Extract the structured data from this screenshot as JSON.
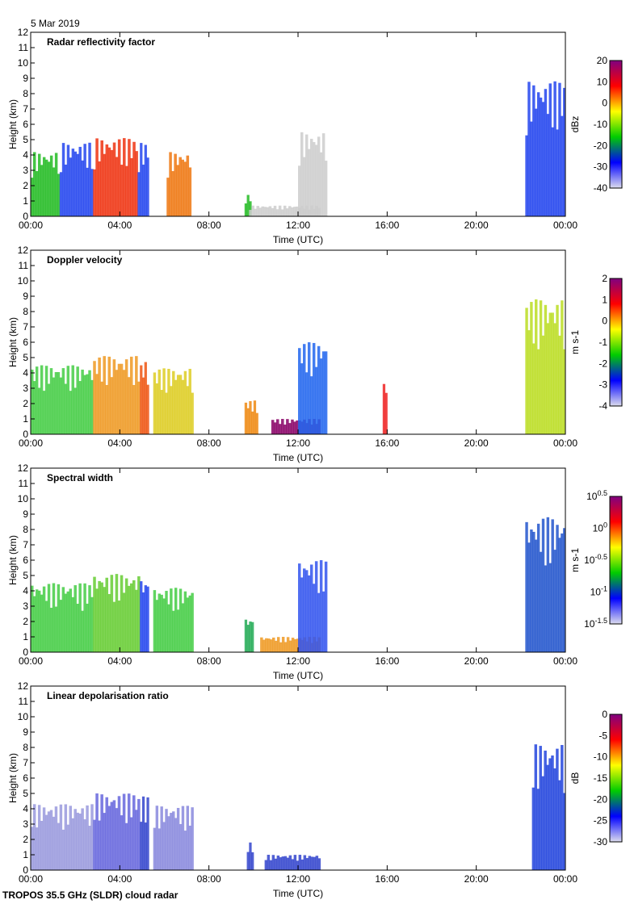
{
  "date": "5 Mar 2019",
  "footer": "TROPOS 35.5 GHz (SLDR) cloud radar",
  "chart_data": [
    {
      "type": "heatmap",
      "title": "Radar reflectivity factor",
      "xlabel": "Time (UTC)",
      "ylabel": "Height (km)",
      "xticks": [
        "00:00",
        "04:00",
        "08:00",
        "12:00",
        "16:00",
        "20:00",
        "00:00"
      ],
      "xlim": [
        0,
        24
      ],
      "ylim": [
        0,
        12
      ],
      "yticks": [
        0,
        1,
        2,
        3,
        4,
        5,
        6,
        7,
        8,
        9,
        10,
        11,
        12
      ],
      "colorbar": {
        "label": "dBz",
        "ticks": [
          "20",
          "10",
          "0",
          "-10",
          "-20",
          "-30",
          "-40"
        ],
        "colors": [
          "#ddddee",
          "#0000ff",
          "#00cc00",
          "#ffff00",
          "#ff0000",
          "#800080"
        ]
      },
      "echoes": [
        [
          0,
          1.3,
          4.2,
          "#22bb22"
        ],
        [
          1.3,
          2.8,
          4.8,
          "#2244ee"
        ],
        [
          2.8,
          4.8,
          5.1,
          "#ee3311"
        ],
        [
          4.8,
          5.3,
          4.8,
          "#2244ee"
        ],
        [
          6.1,
          7.2,
          4.2,
          "#ee7711"
        ],
        [
          9.6,
          9.9,
          1.4,
          "#22bb22"
        ],
        [
          9.8,
          13,
          0.7,
          "#cccccc"
        ],
        [
          12,
          13.3,
          5.5,
          "#cccccc"
        ],
        [
          22.2,
          24,
          8.8,
          "#2244ee"
        ]
      ]
    },
    {
      "type": "heatmap",
      "title": "Doppler velocity",
      "xlabel": "Time (UTC)",
      "ylabel": "Height (km)",
      "xticks": [
        "00:00",
        "04:00",
        "08:00",
        "12:00",
        "16:00",
        "20:00",
        "00:00"
      ],
      "xlim": [
        0,
        24
      ],
      "ylim": [
        0,
        12
      ],
      "yticks": [
        0,
        1,
        2,
        3,
        4,
        5,
        6,
        7,
        8,
        9,
        10,
        11,
        12
      ],
      "colorbar": {
        "label": "m s-1",
        "ticks": [
          "2",
          "1",
          "0",
          "-1",
          "-2",
          "-3",
          "-4"
        ],
        "colors": [
          "#ddddee",
          "#0000ff",
          "#00cc00",
          "#ffff00",
          "#ff0000",
          "#800080"
        ]
      },
      "echoes": [
        [
          0,
          2.8,
          4.5,
          "#44cc44"
        ],
        [
          2.8,
          4.9,
          5.1,
          "#ee9922"
        ],
        [
          4.9,
          5.3,
          4.8,
          "#ee5511"
        ],
        [
          5.5,
          7.3,
          4.3,
          "#ddcc22"
        ],
        [
          9.6,
          10.2,
          2.2,
          "#ee8811"
        ],
        [
          10.8,
          13,
          1.0,
          "#880066"
        ],
        [
          12,
          13.3,
          6,
          "#2266ee"
        ],
        [
          15.8,
          16,
          3.5,
          "#ee2222"
        ],
        [
          22.2,
          24,
          8.8,
          "#bbdd22"
        ]
      ]
    },
    {
      "type": "heatmap",
      "title": "Spectral width",
      "xlabel": "Time (UTC)",
      "ylabel": "Height (km)",
      "xticks": [
        "00:00",
        "04:00",
        "08:00",
        "12:00",
        "16:00",
        "20:00",
        "00:00"
      ],
      "xlim": [
        0,
        24
      ],
      "ylim": [
        0,
        12
      ],
      "yticks": [
        0,
        1,
        2,
        3,
        4,
        5,
        6,
        7,
        8,
        9,
        10,
        11,
        12
      ],
      "colorbar": {
        "label": "m s-1",
        "ticks": [
          "10^0.5",
          "10^0",
          "10^-0.5",
          "10^-1",
          "10^-1.5"
        ],
        "colors": [
          "#ddddee",
          "#0000ff",
          "#00cc00",
          "#ffff00",
          "#ff0000",
          "#800080"
        ]
      },
      "echoes": [
        [
          0,
          2.8,
          4.5,
          "#44cc44"
        ],
        [
          2.8,
          4.9,
          5.1,
          "#66cc33"
        ],
        [
          4.9,
          5.3,
          4.8,
          "#2244ee"
        ],
        [
          5.5,
          7.3,
          4.2,
          "#44cc44"
        ],
        [
          9.6,
          10,
          2.2,
          "#22aa55"
        ],
        [
          10.3,
          13,
          1.0,
          "#ee9922"
        ],
        [
          12,
          13.3,
          6,
          "#3355ee"
        ],
        [
          22.2,
          24,
          8.8,
          "#2255cc"
        ]
      ]
    },
    {
      "type": "heatmap",
      "title": "Linear depolarisation ratio",
      "xlabel": "Time (UTC)",
      "ylabel": "Height (km)",
      "xticks": [
        "00:00",
        "04:00",
        "08:00",
        "12:00",
        "16:00",
        "20:00",
        "00:00"
      ],
      "xlim": [
        0,
        24
      ],
      "ylim": [
        0,
        12
      ],
      "yticks": [
        0,
        1,
        2,
        3,
        4,
        5,
        6,
        7,
        8,
        9,
        10,
        11,
        12
      ],
      "colorbar": {
        "label": "dB",
        "ticks": [
          "0",
          "-5",
          "-10",
          "-15",
          "-20",
          "-25",
          "-30"
        ],
        "colors": [
          "#ddddee",
          "#0000ff",
          "#00cc00",
          "#ffff00",
          "#ff0000",
          "#800080"
        ]
      },
      "echoes": [
        [
          0,
          2.8,
          4.3,
          "#9999dd"
        ],
        [
          2.8,
          4.9,
          5.0,
          "#6666dd"
        ],
        [
          4.9,
          5.3,
          4.8,
          "#3344cc"
        ],
        [
          5.5,
          7.3,
          4.2,
          "#8888dd"
        ],
        [
          9.7,
          10,
          1.8,
          "#3344cc"
        ],
        [
          10.5,
          13,
          1.0,
          "#3344cc"
        ],
        [
          22.5,
          24,
          8.2,
          "#2244dd"
        ]
      ]
    }
  ]
}
